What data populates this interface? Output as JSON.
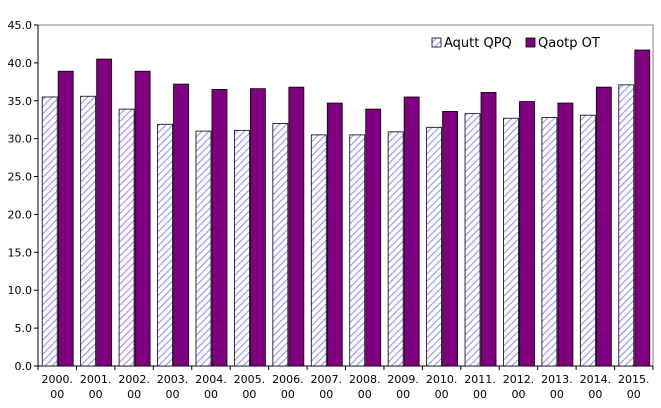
{
  "chart_data": {
    "type": "bar",
    "categories": [
      "2000.00",
      "2001.00",
      "2002.00",
      "2003.00",
      "2004.00",
      "2005.00",
      "2006.00",
      "2007.00",
      "2008.00",
      "2009.00",
      "2010.00",
      "2011.00",
      "2012.00",
      "2013.00",
      "2014.00",
      "2015.00"
    ],
    "series": [
      {
        "name": "Aqutt QPQ",
        "color": "#9999ff",
        "pattern": "diagonal-hatch",
        "values": [
          35.5,
          35.6,
          33.9,
          31.9,
          31.0,
          31.1,
          32.0,
          30.5,
          30.5,
          30.9,
          31.5,
          33.3,
          32.7,
          32.8,
          33.1,
          37.1
        ]
      },
      {
        "name": "Qaotp OT",
        "color": "#800080",
        "pattern": "solid",
        "values": [
          38.9,
          40.5,
          38.9,
          37.2,
          36.5,
          36.6,
          36.8,
          34.7,
          33.9,
          35.5,
          33.6,
          36.1,
          34.9,
          34.7,
          36.8,
          41.7
        ]
      }
    ],
    "ylim": [
      0,
      45
    ],
    "yticks": [
      "0.0",
      "5.0",
      "10.0",
      "15.0",
      "20.0",
      "25.0",
      "30.0",
      "35.0",
      "40.0",
      "45.0"
    ],
    "grid": false,
    "legend_position": "top-right"
  }
}
